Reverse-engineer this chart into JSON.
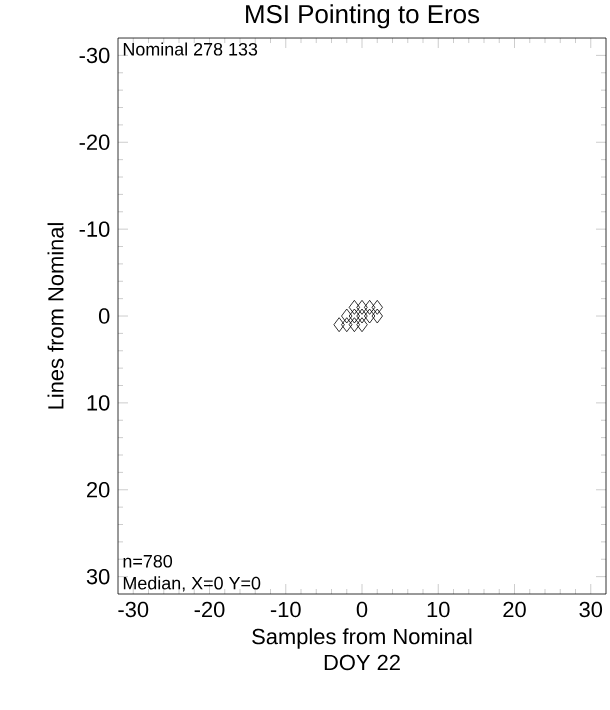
{
  "chart_data": {
    "type": "scatter",
    "title": "MSI Pointing to Eros",
    "xlabel": "Samples from Nominal",
    "ylabel": "Lines from Nominal",
    "annotations": [
      "Nominal 278 133",
      "n=780",
      "Median, X=0  Y=0",
      "DOY 22"
    ],
    "x": [
      -3,
      -2,
      -2,
      -1,
      -1,
      -1,
      0,
      0,
      0,
      1,
      1,
      2,
      2
    ],
    "values": [
      1,
      0,
      1,
      0,
      1,
      -1,
      0,
      -1,
      1,
      0,
      -1,
      -1,
      0
    ],
    "color": "#000000",
    "marker": "diamond",
    "grid": false,
    "xlim": [
      -32,
      32
    ],
    "ylim": [
      32,
      -32
    ],
    "xticks": [
      -30,
      -20,
      -10,
      0,
      10,
      20,
      30
    ],
    "yticks": [
      -30,
      -20,
      -10,
      0,
      10,
      20,
      30
    ]
  }
}
